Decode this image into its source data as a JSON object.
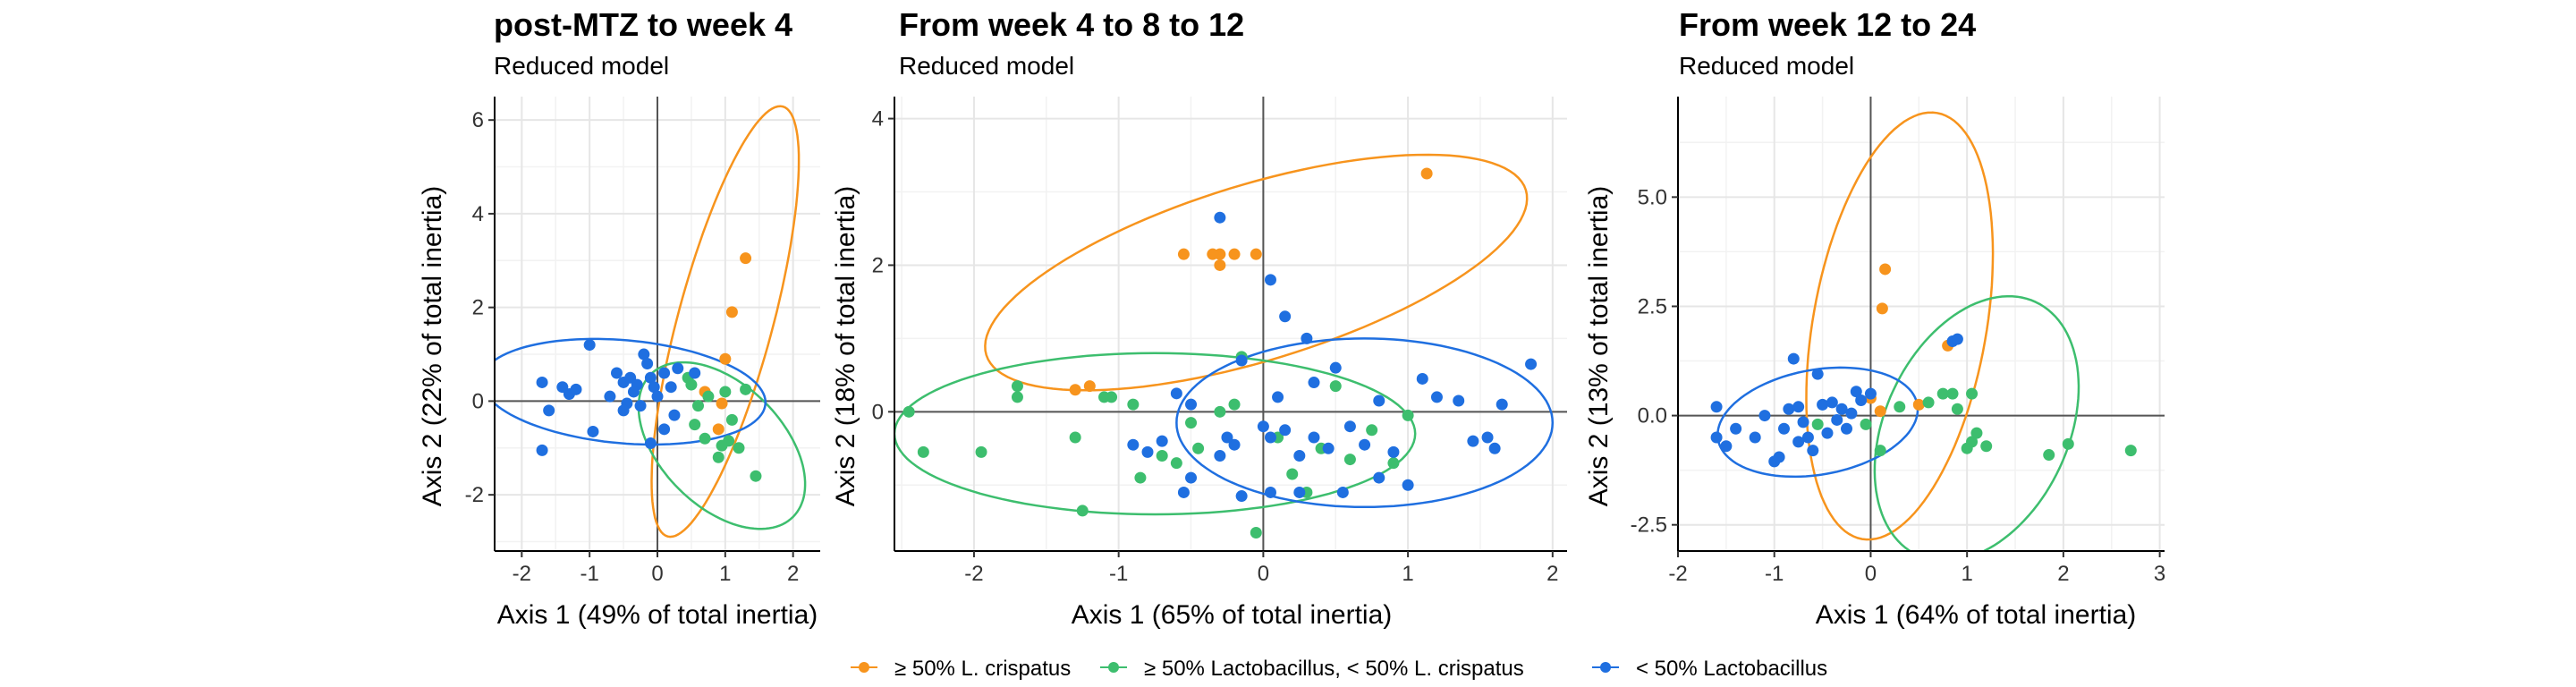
{
  "chart_data": [
    {
      "type": "scatter",
      "title": "post-MTZ to week 4",
      "subtitle": "Reduced model",
      "xlabel": "Axis 1 (49% of total inertia)",
      "ylabel": "Axis 2 (22% of total inertia)",
      "xlim": [
        -2.4,
        2.4
      ],
      "ylim": [
        -3.2,
        6.5
      ],
      "xticks": [
        -2,
        -1,
        0,
        1,
        2
      ],
      "yticks": [
        -2,
        0,
        2,
        4,
        6
      ],
      "xtick_labels": [
        "-2",
        "-1",
        "0",
        "1",
        "2"
      ],
      "ytick_labels": [
        "-2",
        "0",
        "2",
        "4",
        "6"
      ],
      "grid": true,
      "series": [
        {
          "name": "≥ 50% L. crispatus",
          "color": "#F7941D",
          "points": [
            [
              1.3,
              3.05
            ],
            [
              1.1,
              1.9
            ],
            [
              1.0,
              0.9
            ],
            [
              0.7,
              0.2
            ],
            [
              0.95,
              -0.05
            ],
            [
              0.9,
              -0.6
            ]
          ]
        },
        {
          "name": "≥ 50% Lactobacillus, < 50% L. crispatus",
          "color": "#3DBE6E",
          "points": [
            [
              0.5,
              0.35
            ],
            [
              0.75,
              0.1
            ],
            [
              1.0,
              0.2
            ],
            [
              0.6,
              -0.1
            ],
            [
              1.3,
              0.25
            ],
            [
              1.2,
              -1.0
            ],
            [
              1.45,
              -1.6
            ],
            [
              1.05,
              -0.85
            ],
            [
              0.95,
              -0.95
            ],
            [
              0.55,
              -0.5
            ],
            [
              0.7,
              -0.8
            ],
            [
              0.45,
              0.5
            ],
            [
              1.1,
              -0.4
            ],
            [
              0.9,
              -1.2
            ]
          ]
        },
        {
          "name": "< 50% Lactobacillus",
          "color": "#1F6FE0",
          "points": [
            [
              -1.7,
              -1.05
            ],
            [
              -1.6,
              -0.2
            ],
            [
              -1.7,
              0.4
            ],
            [
              -1.3,
              0.15
            ],
            [
              -1.2,
              0.25
            ],
            [
              -1.0,
              1.2
            ],
            [
              -0.95,
              -0.65
            ],
            [
              -0.7,
              0.1
            ],
            [
              -0.6,
              0.6
            ],
            [
              -0.5,
              0.4
            ],
            [
              -0.45,
              -0.05
            ],
            [
              -0.4,
              0.5
            ],
            [
              -0.3,
              0.35
            ],
            [
              -0.25,
              -0.1
            ],
            [
              -0.2,
              1.0
            ],
            [
              -0.15,
              0.8
            ],
            [
              -0.1,
              0.5
            ],
            [
              -0.05,
              0.3
            ],
            [
              0.0,
              0.1
            ],
            [
              0.1,
              0.6
            ],
            [
              0.2,
              0.3
            ],
            [
              0.25,
              -0.3
            ],
            [
              0.3,
              0.7
            ],
            [
              -0.1,
              -0.9
            ],
            [
              0.1,
              -0.6
            ],
            [
              0.55,
              0.6
            ],
            [
              -0.5,
              -0.2
            ],
            [
              -0.35,
              0.2
            ],
            [
              -1.4,
              0.3
            ]
          ]
        }
      ],
      "ellipses": [
        {
          "series": "≥ 50% L. crispatus",
          "cx": 1.0,
          "cy": 1.7,
          "rx": 0.7,
          "ry": 4.75,
          "angle": 15
        },
        {
          "series": "≥ 50% Lactobacillus, < 50% L. crispatus",
          "cx": 0.95,
          "cy": -0.95,
          "rx": 0.9,
          "ry": 2.15,
          "angle": -45
        },
        {
          "series": "< 50% Lactobacillus",
          "cx": -0.5,
          "cy": 0.2,
          "rx": 2.1,
          "ry": 1.1,
          "angle": 5
        }
      ]
    },
    {
      "type": "scatter",
      "title": "From week 4 to 8 to 12",
      "subtitle": "Reduced model",
      "xlabel": "Axis 1 (65% of total inertia)",
      "ylabel": "Axis 2 (18% of total inertia)",
      "xlim": [
        -2.55,
        2.1
      ],
      "ylim": [
        -1.9,
        4.3
      ],
      "xticks": [
        -2,
        -1,
        0,
        1,
        2
      ],
      "yticks": [
        0,
        2,
        4
      ],
      "xtick_labels": [
        "-2",
        "-1",
        "0",
        "1",
        "2"
      ],
      "ytick_labels": [
        "0",
        "2",
        "4"
      ],
      "grid": true,
      "series": [
        {
          "name": "≥ 50% L. crispatus",
          "color": "#F7941D",
          "points": [
            [
              1.13,
              3.25
            ],
            [
              -0.2,
              2.15
            ],
            [
              -0.3,
              2.15
            ],
            [
              -0.35,
              2.15
            ],
            [
              -0.3,
              2.0
            ],
            [
              -0.05,
              2.15
            ],
            [
              -0.55,
              2.15
            ],
            [
              -1.2,
              0.35
            ],
            [
              -1.3,
              0.3
            ]
          ]
        },
        {
          "name": "≥ 50% Lactobacillus, < 50% L. crispatus",
          "color": "#3DBE6E",
          "points": [
            [
              -2.45,
              0.0
            ],
            [
              -2.35,
              -0.55
            ],
            [
              -1.95,
              -0.55
            ],
            [
              -1.7,
              0.35
            ],
            [
              -1.3,
              -0.35
            ],
            [
              -1.25,
              -1.35
            ],
            [
              -1.1,
              0.2
            ],
            [
              -1.05,
              0.2
            ],
            [
              -0.9,
              0.1
            ],
            [
              -0.85,
              -0.9
            ],
            [
              -0.7,
              -0.6
            ],
            [
              -0.6,
              -0.7
            ],
            [
              -0.5,
              -0.15
            ],
            [
              -0.45,
              -0.5
            ],
            [
              -0.3,
              0.0
            ],
            [
              -0.2,
              0.1
            ],
            [
              -0.05,
              -1.65
            ],
            [
              0.1,
              -0.35
            ],
            [
              0.2,
              -0.85
            ],
            [
              0.3,
              -1.1
            ],
            [
              0.4,
              -0.5
            ],
            [
              0.5,
              0.35
            ],
            [
              0.6,
              -0.65
            ],
            [
              0.75,
              -0.25
            ],
            [
              0.9,
              -0.7
            ],
            [
              1.0,
              -0.05
            ],
            [
              -1.7,
              0.2
            ],
            [
              -0.15,
              0.75
            ]
          ]
        },
        {
          "name": "< 50% Lactobacillus",
          "color": "#1F6FE0",
          "points": [
            [
              -0.3,
              2.65
            ],
            [
              0.05,
              1.8
            ],
            [
              0.15,
              1.3
            ],
            [
              0.3,
              1.0
            ],
            [
              0.5,
              0.6
            ],
            [
              0.35,
              0.4
            ],
            [
              0.1,
              0.2
            ],
            [
              -0.15,
              0.7
            ],
            [
              -0.5,
              0.1
            ],
            [
              -0.6,
              0.25
            ],
            [
              -0.7,
              -0.4
            ],
            [
              -0.8,
              -0.55
            ],
            [
              -0.9,
              -0.45
            ],
            [
              -0.5,
              -0.9
            ],
            [
              -0.3,
              -0.6
            ],
            [
              -0.2,
              -0.45
            ],
            [
              0.0,
              -0.2
            ],
            [
              0.05,
              -0.35
            ],
            [
              0.15,
              -0.25
            ],
            [
              0.25,
              -0.6
            ],
            [
              0.35,
              -0.35
            ],
            [
              0.45,
              -0.5
            ],
            [
              0.6,
              -0.2
            ],
            [
              0.7,
              -0.45
            ],
            [
              0.8,
              0.15
            ],
            [
              0.9,
              -0.55
            ],
            [
              1.0,
              -1.0
            ],
            [
              1.1,
              0.45
            ],
            [
              1.2,
              0.2
            ],
            [
              1.35,
              0.15
            ],
            [
              1.45,
              -0.4
            ],
            [
              1.55,
              -0.35
            ],
            [
              1.65,
              0.1
            ],
            [
              1.85,
              0.65
            ],
            [
              1.6,
              -0.5
            ],
            [
              0.05,
              -1.1
            ],
            [
              -0.55,
              -1.1
            ],
            [
              -0.15,
              -1.15
            ],
            [
              0.25,
              -1.1
            ],
            [
              0.55,
              -1.1
            ],
            [
              0.8,
              -0.9
            ],
            [
              -0.25,
              -0.35
            ]
          ]
        }
      ],
      "ellipses": [
        {
          "series": "≥ 50% L. crispatus",
          "cx": -0.05,
          "cy": 1.9,
          "rx": 1.95,
          "ry": 1.2,
          "angle": -17
        },
        {
          "series": "≥ 50% Lactobacillus, < 50% L. crispatus",
          "cx": -0.75,
          "cy": -0.3,
          "rx": 1.8,
          "ry": 1.1,
          "angle": 0
        },
        {
          "series": "< 50% Lactobacillus",
          "cx": 0.7,
          "cy": -0.15,
          "rx": 1.3,
          "ry": 1.15,
          "angle": 0
        }
      ]
    },
    {
      "type": "scatter",
      "title": "From week 12 to 24",
      "subtitle": "Reduced model",
      "xlabel": "Axis 1 (64% of total inertia)",
      "ylabel": "Axis 2 (13% of total inertia)",
      "xlim": [
        -2.0,
        3.05
      ],
      "ylim": [
        -3.1,
        7.3
      ],
      "xticks": [
        -2,
        -1,
        0,
        1,
        2,
        3
      ],
      "yticks": [
        -2.5,
        0.0,
        2.5,
        5.0
      ],
      "xtick_labels": [
        "-2",
        "-1",
        "0",
        "1",
        "2",
        "3"
      ],
      "ytick_labels": [
        "-2.5",
        "0.0",
        "2.5",
        "5.0"
      ],
      "grid": true,
      "series": [
        {
          "name": "≥ 50% L. crispatus",
          "color": "#F7941D",
          "points": [
            [
              0.15,
              3.35
            ],
            [
              0.12,
              2.45
            ],
            [
              0.8,
              1.6
            ],
            [
              0.5,
              0.25
            ],
            [
              0.0,
              0.4
            ],
            [
              0.1,
              0.1
            ]
          ]
        },
        {
          "name": "≥ 50% Lactobacillus, < 50% L. crispatus",
          "color": "#3DBE6E",
          "points": [
            [
              -0.55,
              -0.2
            ],
            [
              -0.05,
              -0.2
            ],
            [
              0.1,
              -0.8
            ],
            [
              0.3,
              0.2
            ],
            [
              0.6,
              0.3
            ],
            [
              0.75,
              0.5
            ],
            [
              0.85,
              0.5
            ],
            [
              1.0,
              -0.75
            ],
            [
              1.05,
              -0.6
            ],
            [
              1.1,
              -0.4
            ],
            [
              1.2,
              -0.7
            ],
            [
              1.85,
              -0.9
            ],
            [
              2.05,
              -0.65
            ],
            [
              2.7,
              -0.8
            ],
            [
              1.05,
              0.5
            ],
            [
              0.9,
              0.15
            ]
          ]
        },
        {
          "name": "< 50% Lactobacillus",
          "color": "#1F6FE0",
          "points": [
            [
              -1.6,
              0.2
            ],
            [
              -1.6,
              -0.5
            ],
            [
              -1.5,
              -0.7
            ],
            [
              -1.4,
              -0.3
            ],
            [
              -1.2,
              -0.5
            ],
            [
              -1.1,
              0.0
            ],
            [
              -1.0,
              -1.05
            ],
            [
              -0.9,
              -0.3
            ],
            [
              -0.85,
              0.15
            ],
            [
              -0.8,
              1.3
            ],
            [
              -0.75,
              0.2
            ],
            [
              -0.7,
              -0.15
            ],
            [
              -0.65,
              -0.5
            ],
            [
              -0.6,
              -0.8
            ],
            [
              -0.55,
              0.95
            ],
            [
              -0.5,
              0.25
            ],
            [
              -0.45,
              -0.4
            ],
            [
              -0.4,
              0.3
            ],
            [
              -0.35,
              -0.1
            ],
            [
              -0.3,
              0.15
            ],
            [
              -0.25,
              -0.3
            ],
            [
              -0.2,
              0.05
            ],
            [
              -0.15,
              0.55
            ],
            [
              -0.1,
              0.35
            ],
            [
              0.0,
              0.5
            ],
            [
              0.85,
              1.7
            ],
            [
              0.9,
              1.75
            ],
            [
              -0.95,
              -0.95
            ],
            [
              -0.75,
              -0.6
            ]
          ]
        }
      ],
      "ellipses": [
        {
          "series": "≥ 50% L. crispatus",
          "cx": 0.3,
          "cy": 2.05,
          "rx": 0.9,
          "ry": 4.95,
          "angle": 10
        },
        {
          "series": "≥ 50% Lactobacillus, < 50% L. crispatus",
          "cx": 1.1,
          "cy": -0.3,
          "rx": 1.45,
          "ry": 2.1,
          "angle": -65
        },
        {
          "series": "< 50% Lactobacillus",
          "cx": -0.55,
          "cy": -0.15,
          "rx": 1.05,
          "ry": 1.2,
          "angle": -10
        }
      ]
    }
  ],
  "legend": {
    "placement": "bottom",
    "items": [
      {
        "label": "≥ 50% L. crispatus",
        "color": "#F7941D"
      },
      {
        "label": "≥ 50% Lactobacillus, < 50% L. crispatus",
        "color": "#3DBE6E"
      },
      {
        "label": "< 50% Lactobacillus",
        "color": "#1F6FE0"
      }
    ]
  }
}
